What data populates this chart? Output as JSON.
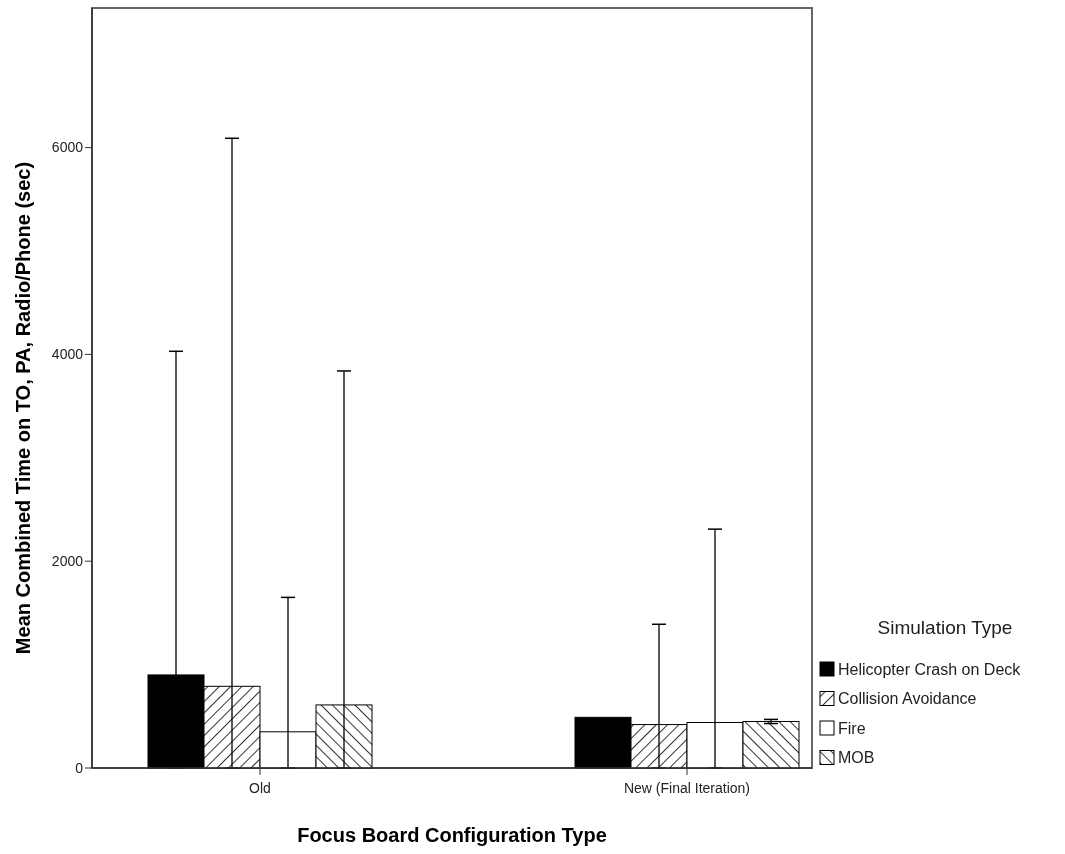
{
  "chart_data": {
    "type": "bar",
    "xlabel": "Focus Board Configuration Type",
    "ylabel": "Mean Combined Time on TO, PA, Radio/Phone (sec)",
    "legend_title": "Simulation Type",
    "legend": "right",
    "categories": [
      "Old",
      "New (Final Iteration)"
    ],
    "ylim": [
      0,
      7350
    ],
    "yticks": [
      0,
      2000,
      4000,
      6000
    ],
    "series": [
      {
        "name": "Helicopter Crash on Deck",
        "color": "#000000",
        "values": [
          900,
          490
        ],
        "errors": [
          [
            0,
            4030
          ],
          null
        ]
      },
      {
        "name": "Collision Avoidance",
        "color": "#ffffff",
        "values": [
          790,
          420
        ],
        "errors": [
          [
            0,
            6090
          ],
          [
            0,
            1390
          ]
        ]
      },
      {
        "name": "Fire",
        "color": "#ffffff",
        "values": [
          350,
          440
        ],
        "errors": [
          [
            0,
            1650
          ],
          [
            0,
            2310
          ]
        ]
      },
      {
        "name": "MOB",
        "color": "#ffffff",
        "values": [
          610,
          450
        ],
        "errors": [
          [
            0,
            3840
          ],
          [
            430,
            470
          ]
        ]
      }
    ]
  }
}
